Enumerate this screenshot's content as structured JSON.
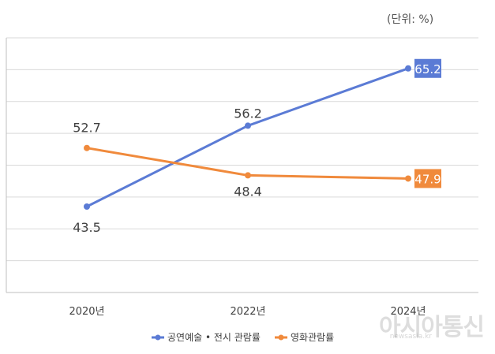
{
  "unit_label": "(단위: %)",
  "watermark": "아시아통신",
  "watermark_url": "newsasia.kr",
  "colors": {
    "series1": "#5b7bd5",
    "series2": "#f08a3c",
    "grid": "#d9d9d9",
    "axis": "#bfbfbf",
    "text": "#404040"
  },
  "chart_data": {
    "type": "line",
    "categories": [
      "2020년",
      "2022년",
      "2024년"
    ],
    "ylim": [
      30,
      70
    ],
    "grid": true,
    "legend_position": "bottom",
    "series": [
      {
        "name": "공연예술 • 전시 관람률",
        "values": [
          43.5,
          56.2,
          65.2
        ],
        "labels": [
          "43.5",
          "56.2",
          "65.2"
        ],
        "color": "#5b7bd5"
      },
      {
        "name": "영화관람률",
        "values": [
          52.7,
          48.4,
          47.9
        ],
        "labels": [
          "52.7",
          "48.4",
          "47.9"
        ],
        "color": "#f08a3c"
      }
    ]
  }
}
